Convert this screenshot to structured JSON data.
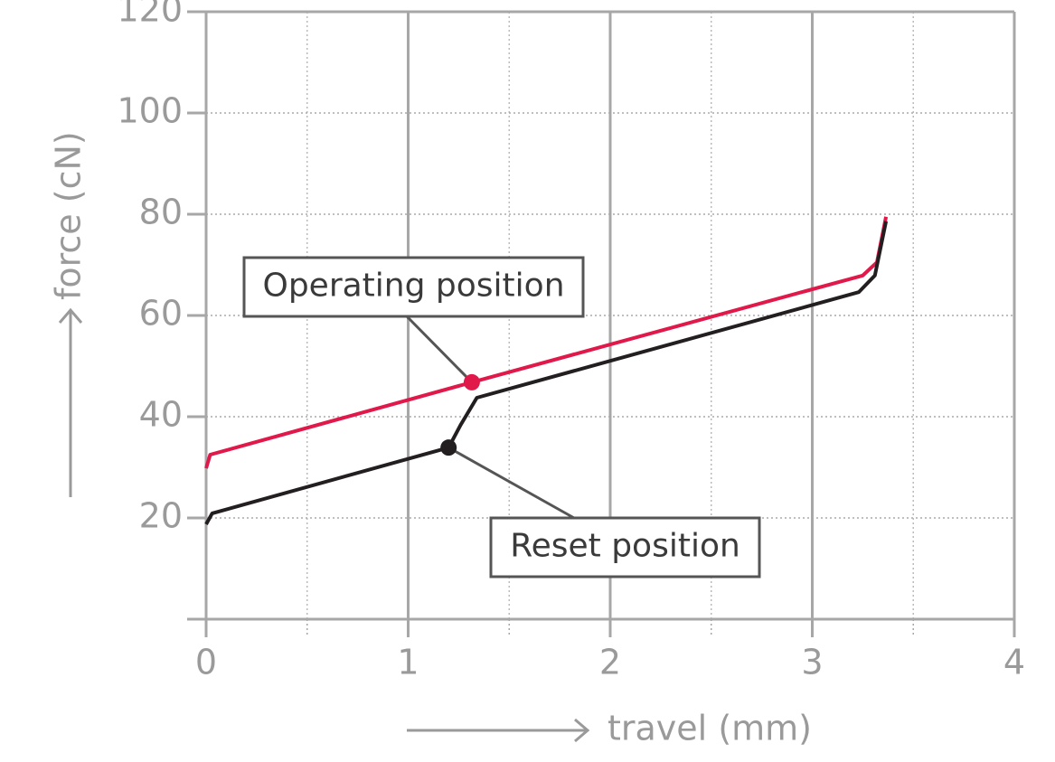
{
  "chart_data": {
    "type": "line",
    "x_label": "travel (mm)",
    "y_label": "force (cN)",
    "xlim": [
      0,
      4
    ],
    "xticks": [
      0,
      1,
      2,
      3,
      4
    ],
    "x_minor_ticks": [
      0.5,
      1.5,
      2.5,
      3.5
    ],
    "ylim": [
      0,
      120
    ],
    "yticks": [
      20,
      40,
      60,
      80,
      100,
      120
    ],
    "grid": true,
    "series": [
      {
        "color": "#e0194a",
        "x": [
          0,
          0.02,
          1.315,
          3.25,
          3.32,
          3.365
        ],
        "values": [
          29.8,
          32.5,
          46.8,
          67.9,
          70.5,
          79.5
        ]
      },
      {
        "color": "#231f20",
        "x": [
          0,
          0.03,
          1.2,
          1.26,
          1.34,
          3.23,
          3.31,
          3.365
        ],
        "values": [
          18.75,
          20.9,
          33.9,
          38.4,
          43.75,
          64.6,
          67.9,
          78.6
        ]
      }
    ],
    "annotations": [
      {
        "label": "Operating position",
        "x": 1.315,
        "y": 46.8,
        "color": "#e0194a"
      },
      {
        "label": "Reset position",
        "x": 1.2,
        "y": 33.9,
        "color": "#231f20"
      }
    ]
  }
}
